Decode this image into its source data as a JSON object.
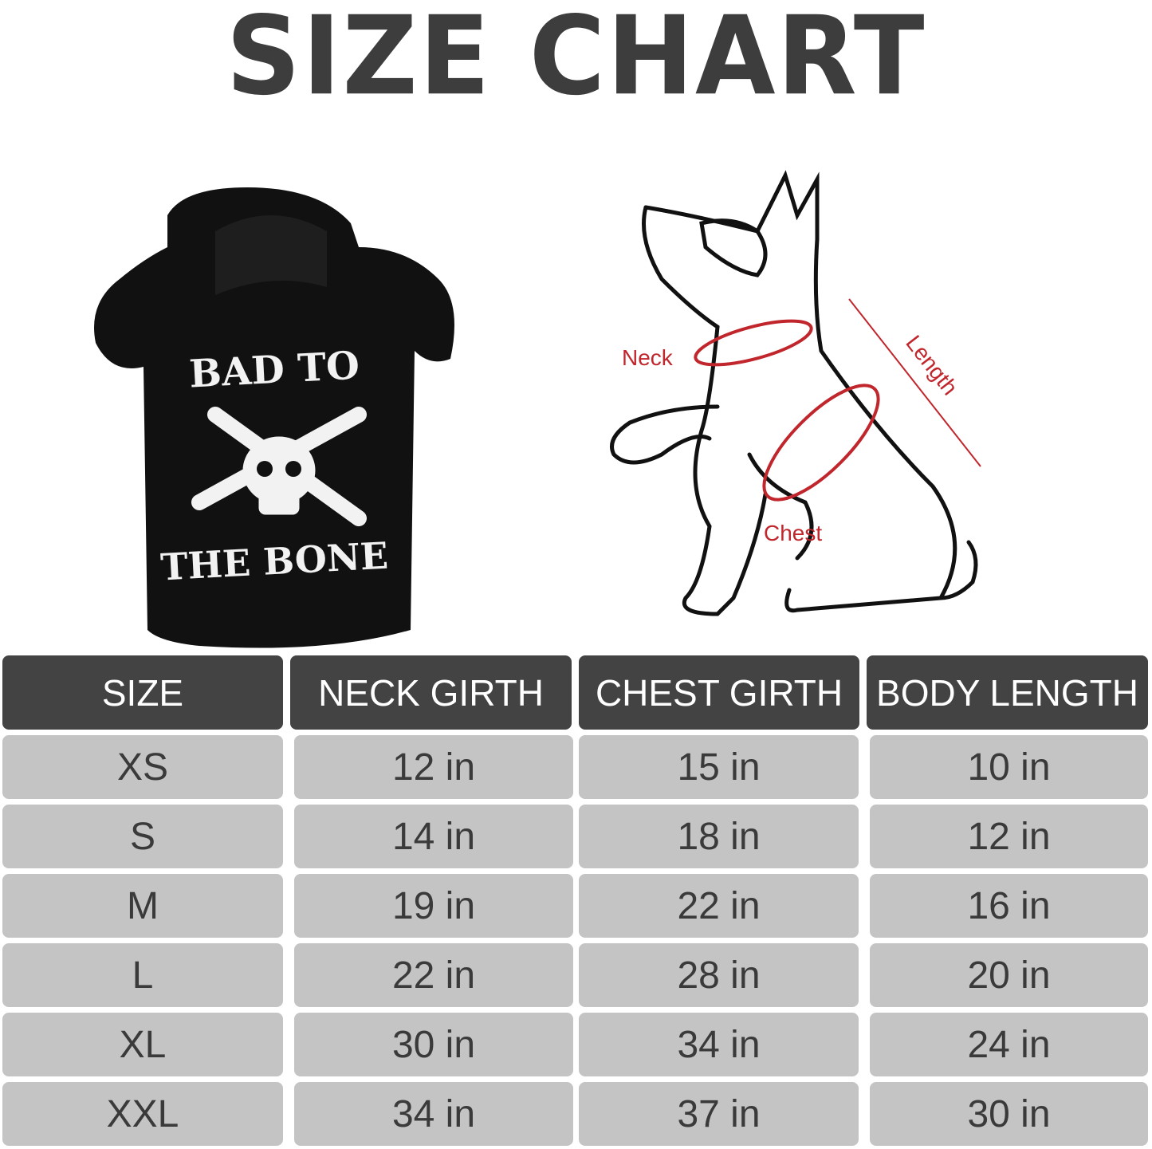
{
  "title": "SIZE CHART",
  "hoodie": {
    "print_top": "BAD TO",
    "print_bottom": "THE BONE"
  },
  "diagram": {
    "labels": {
      "neck": "Neck",
      "length": "Length",
      "chest": "Chest"
    },
    "accent_color": "#c0262c"
  },
  "table": {
    "headers": [
      "SIZE",
      "NECK GIRTH",
      "CHEST GIRTH",
      "BODY LENGTH"
    ],
    "rows": [
      [
        "XS",
        "12 in",
        "15 in",
        "10 in"
      ],
      [
        "S",
        "14 in",
        "18 in",
        "12 in"
      ],
      [
        "M",
        "19 in",
        "22 in",
        "16 in"
      ],
      [
        "L",
        "22 in",
        "28 in",
        "20 in"
      ],
      [
        "XL",
        "30 in",
        "34 in",
        "24 in"
      ],
      [
        "XXL",
        "34 in",
        "37 in",
        "30 in"
      ]
    ],
    "header_color": "#434343",
    "cell_color": "#c4c4c4"
  }
}
